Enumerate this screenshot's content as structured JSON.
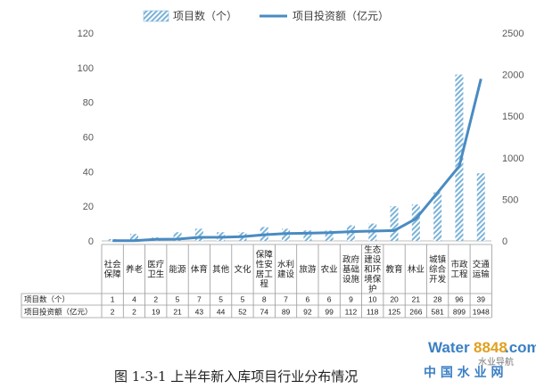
{
  "chart_data": {
    "type": "bar",
    "categories": [
      "社会保障",
      "养老",
      "医疗卫生",
      "能源",
      "体育",
      "其他",
      "文化",
      "保障性安居工程",
      "水利建设",
      "旅游",
      "农业",
      "政府基础设施",
      "生态建设和环境保护",
      "教育",
      "林业",
      "城镇综合开发",
      "市政工程",
      "交通运输"
    ],
    "series": [
      {
        "name": "项目数（个）",
        "type": "bar",
        "axis": "left",
        "values": [
          1,
          4,
          2,
          5,
          7,
          5,
          5,
          8,
          7,
          6,
          6,
          9,
          10,
          20,
          21,
          28,
          96,
          39
        ]
      },
      {
        "name": "项目投资额（亿元）",
        "type": "line",
        "axis": "right",
        "values": [
          2,
          2,
          19,
          21,
          43,
          44,
          52,
          74,
          89,
          92,
          99,
          112,
          118,
          125,
          266,
          581,
          899,
          1948
        ]
      }
    ],
    "y_left": {
      "min": 0,
      "max": 120,
      "ticks": [
        0,
        20,
        40,
        60,
        80,
        100,
        120
      ]
    },
    "y_right": {
      "min": 0,
      "max": 2500,
      "ticks": [
        0,
        500,
        1000,
        1500,
        2000,
        2500
      ]
    },
    "grid": false,
    "legend_position": "top",
    "table_row_labels": [
      "项目数（个）",
      "项目投资额（亿元）"
    ],
    "caption": "图 1-3-1    上半年新入库项目行业分布情况"
  },
  "colors": {
    "bar_hatch": "#7ab3d9",
    "line": "#4a8bc2",
    "axis": "#bfbfbf",
    "table_border": "#9a9a9a"
  },
  "watermark": {
    "water": "Water",
    "num": "8848",
    "com": ".com",
    "cn": "中 国 水 业 网",
    "wechat": "水业导航"
  }
}
